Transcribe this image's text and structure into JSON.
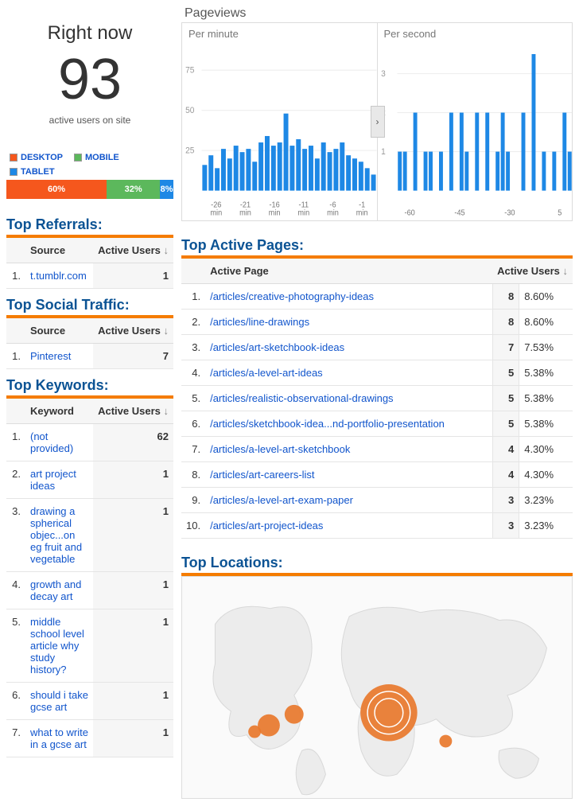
{
  "colors": {
    "title": "#0b5394",
    "link": "#1155cc",
    "orange_rule": "#f57c00",
    "bubble": "#e8782c",
    "bar_fill": "#1e88e5",
    "chart_grid": "#eeeeee",
    "chart_text": "#999999"
  },
  "right_now": {
    "title": "Right now",
    "count": "93",
    "subtitle": "active users on site"
  },
  "devices": {
    "legend": [
      {
        "label": "DESKTOP",
        "color": "#f5571d"
      },
      {
        "label": "MOBILE",
        "color": "#5cb85c"
      },
      {
        "label": "TABLET",
        "color": "#1e88e5"
      }
    ],
    "segments": [
      {
        "pct": "60%",
        "width": 60,
        "color": "#f5571d"
      },
      {
        "pct": "32%",
        "width": 32,
        "color": "#5cb85c"
      },
      {
        "pct": "8%",
        "width": 8,
        "color": "#1e88e5"
      }
    ]
  },
  "referrals": {
    "title": "Top Referrals:",
    "header_source": "Source",
    "header_users": "Active Users",
    "rows": [
      {
        "idx": "1.",
        "source": "t.tumblr.com",
        "users": "1"
      }
    ]
  },
  "social": {
    "title": "Top Social Traffic:",
    "header_source": "Source",
    "header_users": "Active Users",
    "rows": [
      {
        "idx": "1.",
        "source": "Pinterest",
        "users": "7"
      }
    ]
  },
  "keywords": {
    "title": "Top Keywords:",
    "header_kw": "Keyword",
    "header_users": "Active Users",
    "rows": [
      {
        "idx": "1.",
        "kw": "(not provided)",
        "users": "62"
      },
      {
        "idx": "2.",
        "kw": "art project ideas",
        "users": "1"
      },
      {
        "idx": "3.",
        "kw": "drawing a spherical objec...on eg fruit and vegetable",
        "users": "1"
      },
      {
        "idx": "4.",
        "kw": "growth and decay art",
        "users": "1"
      },
      {
        "idx": "5.",
        "kw": "middle school level article why study history?",
        "users": "1"
      },
      {
        "idx": "6.",
        "kw": "should i take gcse art",
        "users": "1"
      },
      {
        "idx": "7.",
        "kw": "what to write in a gcse art",
        "users": "1"
      }
    ]
  },
  "pageviews": {
    "title": "Pageviews",
    "per_minute": {
      "label": "Per minute",
      "yticks": [
        "75",
        "50",
        "25"
      ],
      "ytick_vals": [
        75,
        50,
        25
      ],
      "ymax": 85,
      "xlabels": [
        "-26 min",
        "-21 min",
        "-16 min",
        "-11 min",
        "-6 min",
        "-1 min"
      ],
      "bars": [
        16,
        22,
        14,
        26,
        20,
        28,
        24,
        26,
        18,
        30,
        34,
        28,
        30,
        48,
        28,
        32,
        26,
        28,
        20,
        30,
        24,
        26,
        30,
        22,
        20,
        18,
        14,
        10
      ]
    },
    "per_second": {
      "label": "Per second",
      "yticks": [
        "3",
        "2",
        "1"
      ],
      "ytick_vals": [
        3,
        2,
        1
      ],
      "ymax": 3.5,
      "xlabels": [
        "-60",
        "",
        "-45",
        "",
        "-30",
        "",
        "5"
      ],
      "bars": [
        1,
        1,
        0,
        2,
        0,
        1,
        1,
        0,
        1,
        0,
        2,
        0,
        2,
        1,
        0,
        2,
        0,
        2,
        0,
        1,
        2,
        1,
        0,
        0,
        2,
        0,
        3.5,
        0,
        1,
        0,
        1,
        0,
        2,
        1
      ]
    }
  },
  "active_pages": {
    "title": "Top Active Pages:",
    "header_page": "Active Page",
    "header_users": "Active Users",
    "rows": [
      {
        "idx": "1.",
        "page": "/articles/creative-photography-ideas",
        "users": "8",
        "pct": "8.60%"
      },
      {
        "idx": "2.",
        "page": "/articles/line-drawings",
        "users": "8",
        "pct": "8.60%"
      },
      {
        "idx": "3.",
        "page": "/articles/art-sketchbook-ideas",
        "users": "7",
        "pct": "7.53%"
      },
      {
        "idx": "4.",
        "page": "/articles/a-level-art-ideas",
        "users": "5",
        "pct": "5.38%"
      },
      {
        "idx": "5.",
        "page": "/articles/realistic-observational-drawings",
        "users": "5",
        "pct": "5.38%"
      },
      {
        "idx": "6.",
        "page": "/articles/sketchbook-idea...nd-portfolio-presentation",
        "users": "5",
        "pct": "5.38%"
      },
      {
        "idx": "7.",
        "page": "/articles/a-level-art-sketchbook",
        "users": "4",
        "pct": "4.30%"
      },
      {
        "idx": "8.",
        "page": "/articles/art-careers-list",
        "users": "4",
        "pct": "4.30%"
      },
      {
        "idx": "9.",
        "page": "/articles/a-level-art-exam-paper",
        "users": "3",
        "pct": "3.23%"
      },
      {
        "idx": "10.",
        "page": "/articles/art-project-ideas",
        "users": "3",
        "pct": "3.23%"
      }
    ]
  },
  "locations": {
    "title": "Top Locations:",
    "bubbles": [
      {
        "x": 260,
        "y": 172,
        "r": 36,
        "ring": true
      },
      {
        "x": 108,
        "y": 188,
        "r": 14
      },
      {
        "x": 140,
        "y": 174,
        "r": 12
      },
      {
        "x": 90,
        "y": 196,
        "r": 8
      },
      {
        "x": 332,
        "y": 208,
        "r": 8
      }
    ]
  },
  "sort_arrow": "↓"
}
